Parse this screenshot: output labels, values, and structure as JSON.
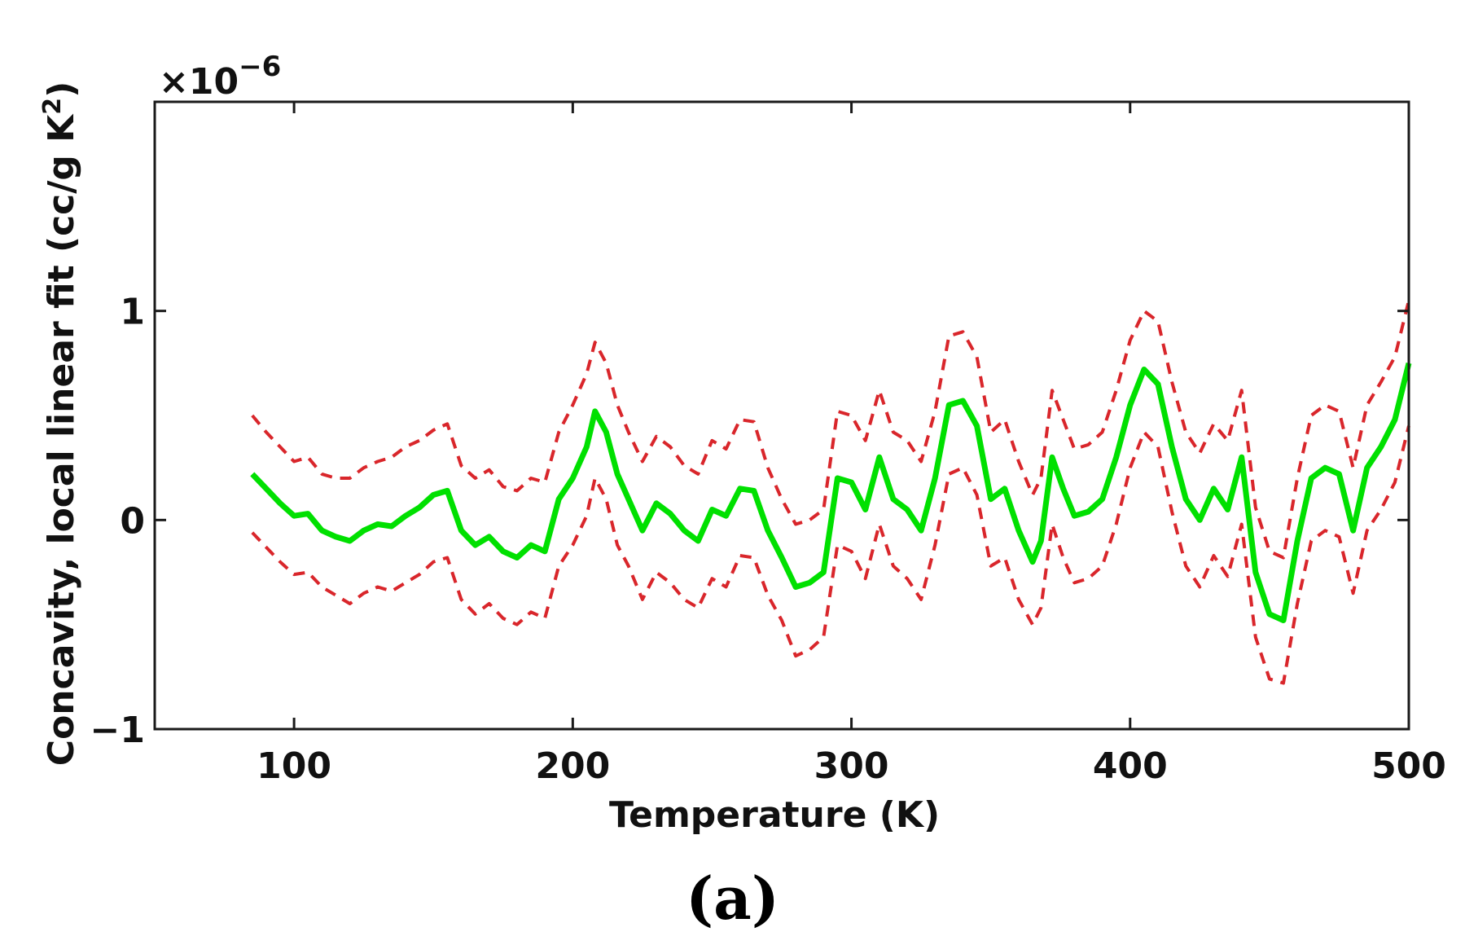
{
  "chart_data": {
    "type": "line",
    "title": "",
    "xlabel": "Temperature (K)",
    "ylabel": "Concavity, local linear fit (cc/g K",
    "ylabel_sup": "2",
    "ylabel_close": ")",
    "y_exponent_base": "×10",
    "y_exponent_power": "−6",
    "xlim": [
      50,
      500
    ],
    "ylim": [
      -1,
      2
    ],
    "x_ticks": [
      100,
      200,
      300,
      400,
      500
    ],
    "x_tick_labels": [
      "100",
      "200",
      "300",
      "400",
      "500"
    ],
    "y_ticks": [
      -1,
      0,
      1
    ],
    "y_tick_labels": [
      "−1",
      "0",
      "1"
    ],
    "grid": false,
    "series": [
      {
        "name": "concavity",
        "style": "solid",
        "color": "#00e000",
        "x": [
          85,
          90,
          95,
          100,
          105,
          110,
          115,
          120,
          125,
          130,
          135,
          140,
          145,
          150,
          155,
          160,
          165,
          170,
          175,
          180,
          185,
          190,
          195,
          200,
          205,
          208,
          212,
          216,
          220,
          225,
          230,
          235,
          240,
          245,
          250,
          255,
          260,
          265,
          270,
          275,
          280,
          285,
          290,
          295,
          300,
          305,
          310,
          315,
          320,
          325,
          330,
          335,
          340,
          345,
          350,
          355,
          360,
          365,
          368,
          372,
          376,
          380,
          385,
          390,
          395,
          400,
          405,
          410,
          415,
          420,
          425,
          430,
          435,
          440,
          445,
          450,
          455,
          460,
          465,
          470,
          475,
          480,
          485,
          490,
          495,
          500
        ],
        "y": [
          0.22,
          0.15,
          0.08,
          0.02,
          0.03,
          -0.05,
          -0.08,
          -0.1,
          -0.05,
          -0.02,
          -0.03,
          0.02,
          0.06,
          0.12,
          0.14,
          -0.05,
          -0.12,
          -0.08,
          -0.15,
          -0.18,
          -0.12,
          -0.15,
          0.1,
          0.2,
          0.35,
          0.52,
          0.42,
          0.22,
          0.1,
          -0.05,
          0.08,
          0.03,
          -0.05,
          -0.1,
          0.05,
          0.02,
          0.15,
          0.14,
          -0.05,
          -0.18,
          -0.32,
          -0.3,
          -0.25,
          0.2,
          0.18,
          0.05,
          0.3,
          0.1,
          0.05,
          -0.05,
          0.2,
          0.55,
          0.57,
          0.45,
          0.1,
          0.15,
          -0.05,
          -0.2,
          -0.1,
          0.3,
          0.15,
          0.02,
          0.04,
          0.1,
          0.3,
          0.55,
          0.72,
          0.65,
          0.35,
          0.1,
          0.0,
          0.15,
          0.05,
          0.3,
          -0.25,
          -0.45,
          -0.48,
          -0.1,
          0.2,
          0.25,
          0.22,
          -0.05,
          0.25,
          0.35,
          0.48,
          0.75
        ]
      },
      {
        "name": "upper bound",
        "style": "dashed",
        "color": "#d9262b",
        "x": [
          85,
          90,
          95,
          100,
          105,
          110,
          115,
          120,
          125,
          130,
          135,
          140,
          145,
          150,
          155,
          160,
          165,
          170,
          175,
          180,
          185,
          190,
          195,
          200,
          205,
          208,
          212,
          216,
          220,
          225,
          230,
          235,
          240,
          245,
          250,
          255,
          260,
          265,
          270,
          275,
          280,
          285,
          290,
          295,
          300,
          305,
          310,
          315,
          320,
          325,
          330,
          335,
          340,
          345,
          350,
          355,
          360,
          365,
          368,
          372,
          376,
          380,
          385,
          390,
          395,
          400,
          405,
          410,
          415,
          420,
          425,
          430,
          435,
          440,
          445,
          450,
          455,
          460,
          465,
          470,
          475,
          480,
          485,
          490,
          495,
          500
        ],
        "y": [
          0.5,
          0.42,
          0.35,
          0.28,
          0.3,
          0.22,
          0.2,
          0.2,
          0.25,
          0.28,
          0.3,
          0.35,
          0.38,
          0.43,
          0.46,
          0.26,
          0.2,
          0.24,
          0.16,
          0.14,
          0.2,
          0.18,
          0.42,
          0.55,
          0.7,
          0.85,
          0.75,
          0.55,
          0.42,
          0.28,
          0.4,
          0.35,
          0.26,
          0.22,
          0.38,
          0.34,
          0.48,
          0.47,
          0.25,
          0.1,
          -0.02,
          0.0,
          0.05,
          0.52,
          0.5,
          0.38,
          0.62,
          0.42,
          0.38,
          0.28,
          0.52,
          0.88,
          0.9,
          0.78,
          0.42,
          0.48,
          0.28,
          0.12,
          0.2,
          0.62,
          0.48,
          0.34,
          0.36,
          0.42,
          0.62,
          0.86,
          1.0,
          0.95,
          0.66,
          0.42,
          0.32,
          0.46,
          0.38,
          0.62,
          0.06,
          -0.15,
          -0.18,
          0.2,
          0.5,
          0.55,
          0.52,
          0.25,
          0.55,
          0.66,
          0.78,
          1.05
        ]
      },
      {
        "name": "lower bound",
        "style": "dashed",
        "color": "#d9262b",
        "x": [
          85,
          90,
          95,
          100,
          105,
          110,
          115,
          120,
          125,
          130,
          135,
          140,
          145,
          150,
          155,
          160,
          165,
          170,
          175,
          180,
          185,
          190,
          195,
          200,
          205,
          208,
          212,
          216,
          220,
          225,
          230,
          235,
          240,
          245,
          250,
          255,
          260,
          265,
          270,
          275,
          280,
          285,
          290,
          295,
          300,
          305,
          310,
          315,
          320,
          325,
          330,
          335,
          340,
          345,
          350,
          355,
          360,
          365,
          368,
          372,
          376,
          380,
          385,
          390,
          395,
          400,
          405,
          410,
          415,
          420,
          425,
          430,
          435,
          440,
          445,
          450,
          455,
          460,
          465,
          470,
          475,
          480,
          485,
          490,
          495,
          500
        ],
        "y": [
          -0.06,
          -0.13,
          -0.2,
          -0.26,
          -0.25,
          -0.32,
          -0.36,
          -0.4,
          -0.35,
          -0.32,
          -0.34,
          -0.3,
          -0.26,
          -0.2,
          -0.18,
          -0.38,
          -0.45,
          -0.4,
          -0.47,
          -0.5,
          -0.44,
          -0.47,
          -0.22,
          -0.12,
          0.02,
          0.2,
          0.1,
          -0.12,
          -0.22,
          -0.38,
          -0.25,
          -0.3,
          -0.38,
          -0.42,
          -0.28,
          -0.32,
          -0.17,
          -0.18,
          -0.36,
          -0.48,
          -0.65,
          -0.62,
          -0.56,
          -0.12,
          -0.15,
          -0.28,
          -0.02,
          -0.22,
          -0.28,
          -0.38,
          -0.12,
          0.22,
          0.25,
          0.12,
          -0.22,
          -0.18,
          -0.38,
          -0.5,
          -0.42,
          -0.02,
          -0.18,
          -0.3,
          -0.28,
          -0.22,
          -0.02,
          0.25,
          0.42,
          0.35,
          0.04,
          -0.22,
          -0.32,
          -0.17,
          -0.27,
          -0.02,
          -0.56,
          -0.76,
          -0.78,
          -0.4,
          -0.1,
          -0.05,
          -0.08,
          -0.35,
          -0.05,
          0.05,
          0.18,
          0.45
        ]
      }
    ]
  },
  "panel_label": "(a)"
}
